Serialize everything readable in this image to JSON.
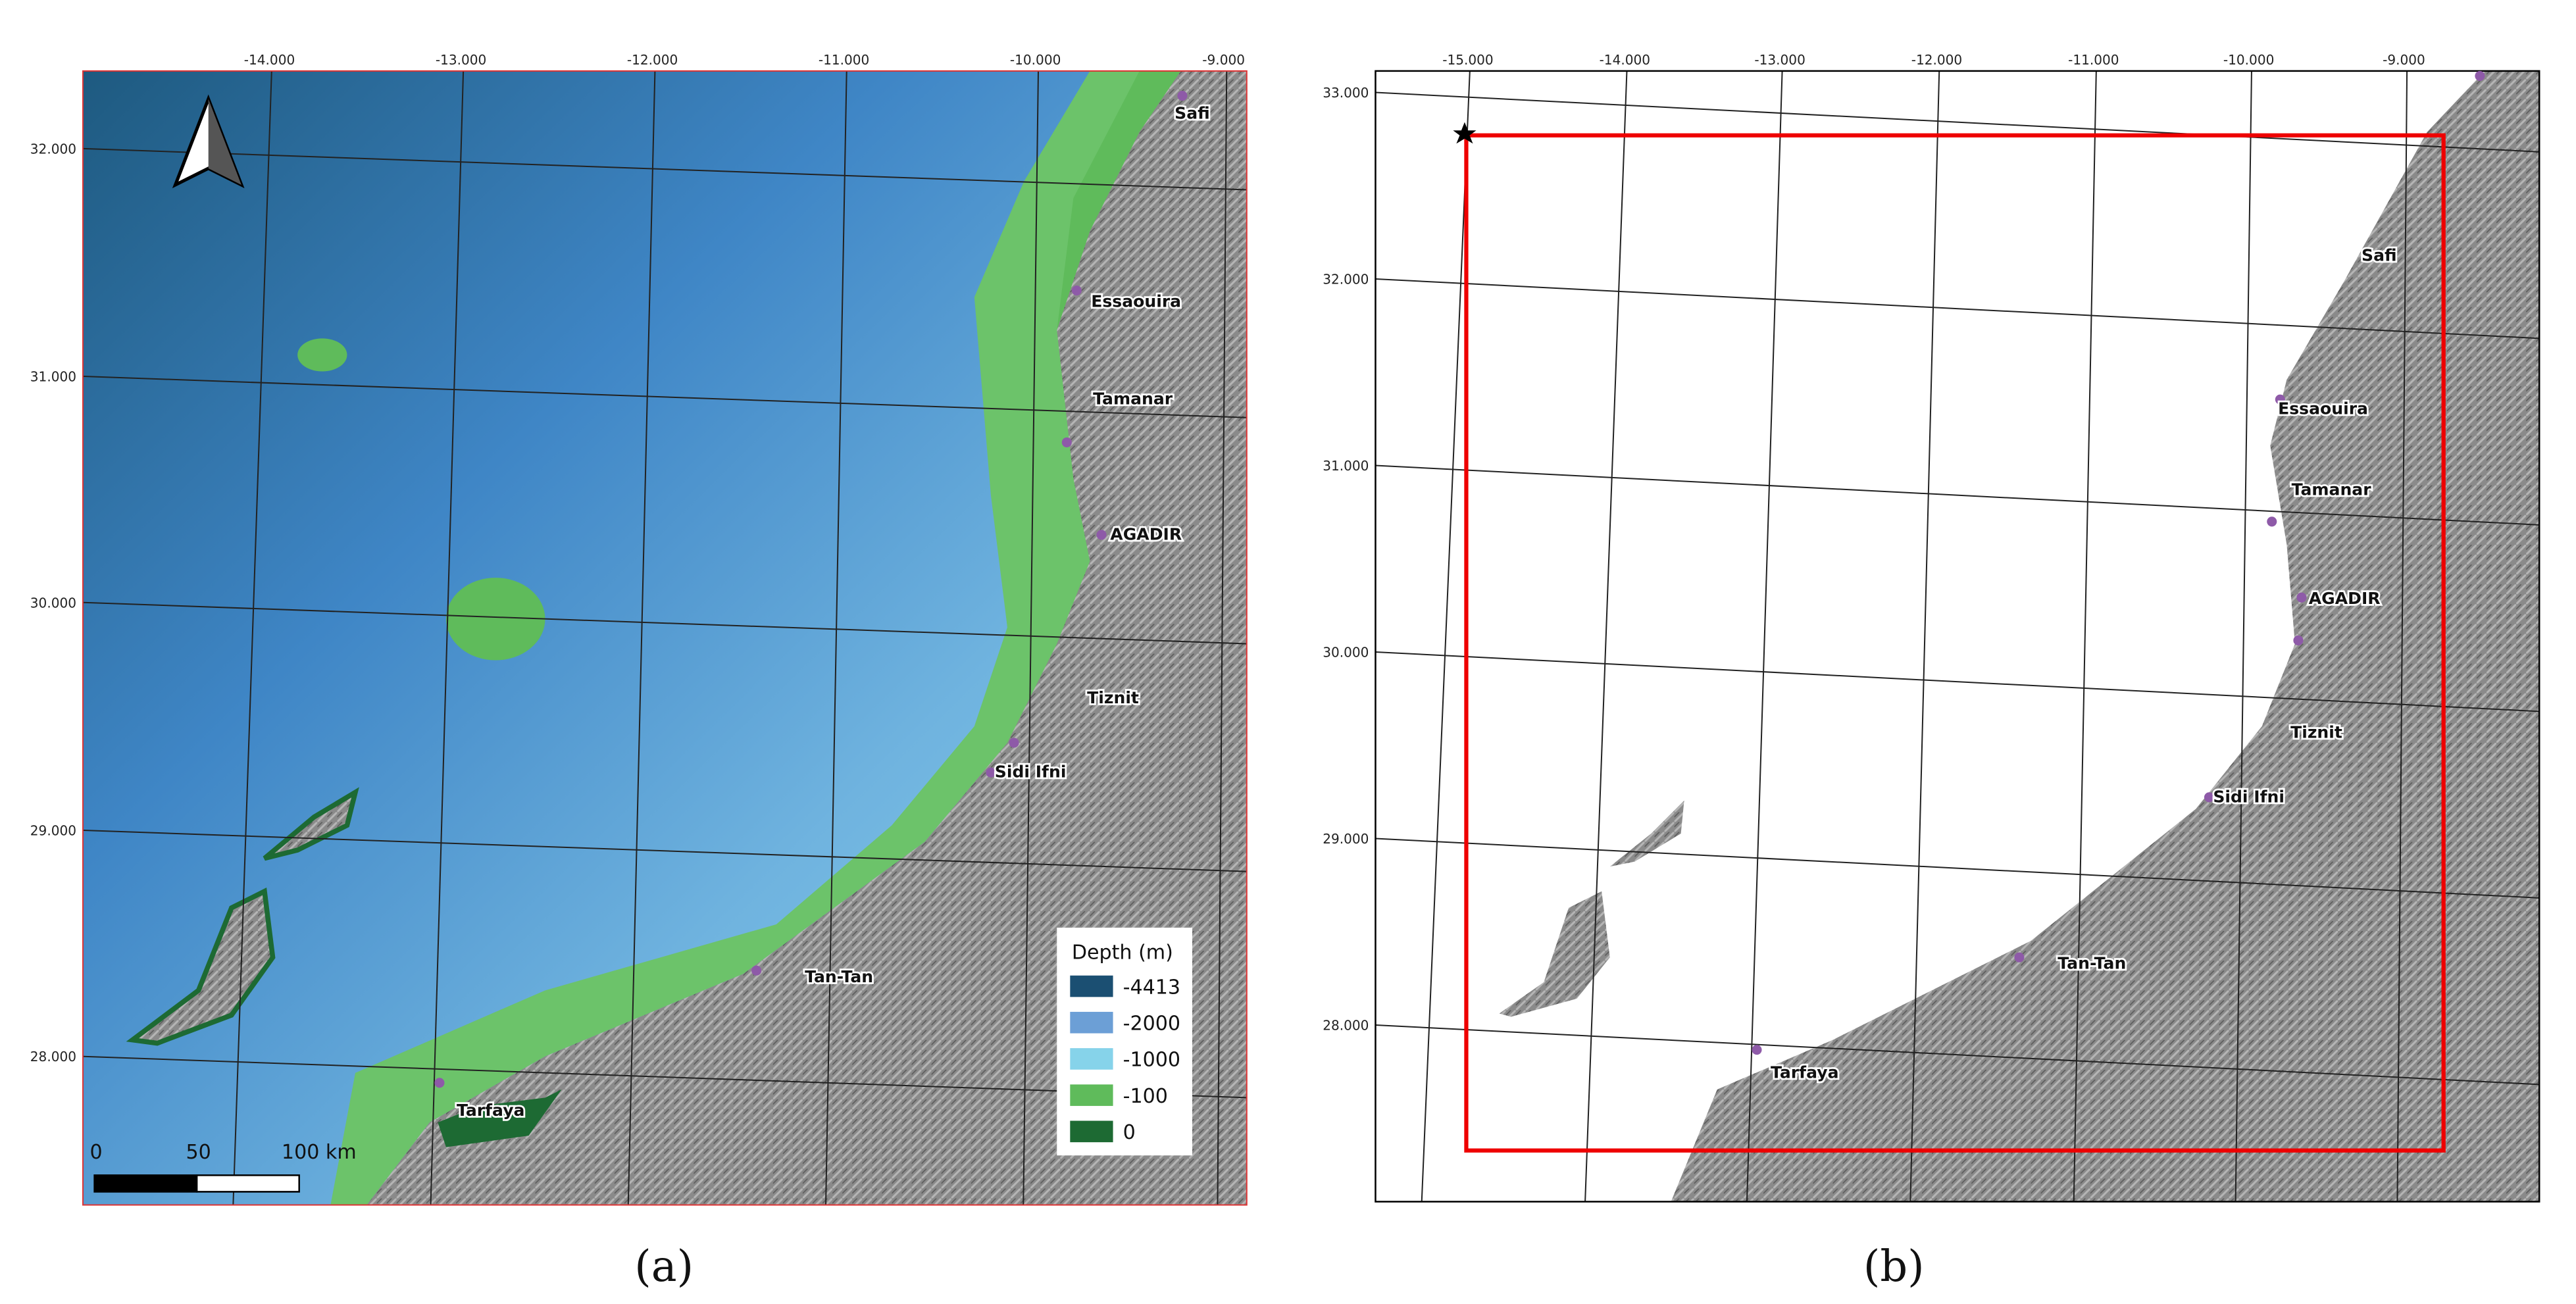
{
  "panels": [
    {
      "caption": "(a)",
      "top_labels": [
        "-14.000",
        "-13.000",
        "-12.000",
        "-11.000",
        "-10.000",
        "-9.000"
      ],
      "left_labels": [
        "32.000",
        "31.000",
        "30.000",
        "29.000",
        "28.000"
      ],
      "places": [
        "Safi",
        "Essaouira",
        "Tamanar",
        "AGADIR",
        "Tiznit",
        "Sidi Ifni",
        "Tan-Tan",
        "Tarfaya"
      ],
      "legend": {
        "title": "Depth (m)",
        "items": [
          {
            "label": "-4413",
            "color": "#1b4f72"
          },
          {
            "label": "-2000",
            "color": "#6c9fd6"
          },
          {
            "label": "-1000",
            "color": "#86d3ea"
          },
          {
            "label": "-100",
            "color": "#5fbb5b"
          },
          {
            "label": "0",
            "color": "#1d6a33"
          }
        ]
      },
      "scale_bar": [
        "0",
        "50",
        "100 km"
      ]
    },
    {
      "caption": "(b)",
      "top_labels": [
        "-15.000",
        "-14.000",
        "-13.000",
        "-12.000",
        "-11.000",
        "-10.000",
        "-9.000"
      ],
      "left_labels": [
        "33.000",
        "32.000",
        "31.000",
        "30.000",
        "29.000",
        "28.000"
      ],
      "places": [
        "Safi",
        "Essaouira",
        "Tamanar",
        "AGADIR",
        "Tiznit",
        "Sidi Ifni",
        "Tan-Tan",
        "Tarfaya"
      ]
    }
  ]
}
